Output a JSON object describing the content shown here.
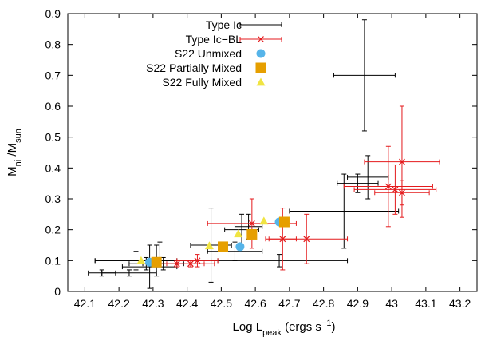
{
  "chart_data": {
    "type": "scatter",
    "xlabel": {
      "base": "Log L",
      "sub": "peak",
      "mid": " (ergs s",
      "sup": "−1",
      "end": ")"
    },
    "ylabel": {
      "base": "M",
      "sub1": "ni",
      "mid": " /M",
      "sub2": "sun"
    },
    "xlim": [
      42.05,
      43.25
    ],
    "ylim": [
      0,
      0.9
    ],
    "xticks": [
      "42.1",
      "42.2",
      "42.3",
      "42.4",
      "42.5",
      "42.6",
      "42.7",
      "42.8",
      "42.9",
      "43",
      "43.1",
      "43.2"
    ],
    "yticks": [
      "0",
      "0.1",
      "0.2",
      "0.3",
      "0.4",
      "0.5",
      "0.6",
      "0.7",
      "0.8",
      "0.9"
    ],
    "legend_position": "top-left",
    "series": [
      {
        "name": "Type Ic",
        "marker": "errorbar",
        "color": "#000000",
        "points": [
          {
            "x": 42.92,
            "y": 0.7,
            "xerr": 0.09,
            "yerr": 0.18
          },
          {
            "x": 42.86,
            "y": 0.26,
            "xerr": 0.16,
            "yerr": 0.12
          },
          {
            "x": 42.9,
            "y": 0.35,
            "xerr": 0.06,
            "yerr": 0.03
          },
          {
            "x": 42.93,
            "y": 0.37,
            "xerr": 0.06,
            "yerr": 0.07
          },
          {
            "x": 42.67,
            "y": 0.1,
            "xerr": 0.2,
            "yerr": 0.02
          },
          {
            "x": 42.56,
            "y": 0.2,
            "xerr": 0.05,
            "yerr": 0.05
          },
          {
            "x": 42.58,
            "y": 0.21,
            "xerr": 0.04,
            "yerr": 0.04
          },
          {
            "x": 42.54,
            "y": 0.13,
            "xerr": 0.08,
            "yerr": 0.03
          },
          {
            "x": 42.47,
            "y": 0.15,
            "xerr": 0.06,
            "yerr": 0.12
          },
          {
            "x": 42.31,
            "y": 0.1,
            "xerr": 0.18,
            "yerr": 0.05
          },
          {
            "x": 42.25,
            "y": 0.1,
            "xerr": 0.12,
            "yerr": 0.03
          },
          {
            "x": 42.29,
            "y": 0.08,
            "xerr": 0.08,
            "yerr": 0.07
          },
          {
            "x": 42.28,
            "y": 0.09,
            "xerr": 0.05,
            "yerr": 0.02
          },
          {
            "x": 42.33,
            "y": 0.09,
            "xerr": 0.06,
            "yerr": 0.02
          },
          {
            "x": 42.23,
            "y": 0.06,
            "xerr": 0.08,
            "yerr": 0.01
          },
          {
            "x": 42.15,
            "y": 0.06,
            "xerr": 0.04,
            "yerr": 0.01
          },
          {
            "x": 42.32,
            "y": 0.13,
            "xerr": 0.0,
            "yerr": 0.03
          }
        ]
      },
      {
        "name": "Type Ic−BL",
        "marker": "x",
        "color": "#e41a1c",
        "points": [
          {
            "x": 43.03,
            "y": 0.42,
            "xerr": 0.11,
            "yerr": 0.18
          },
          {
            "x": 42.99,
            "y": 0.34,
            "xerr": 0.13,
            "yerr": 0.13
          },
          {
            "x": 43.01,
            "y": 0.33,
            "xerr": 0.12,
            "yerr": 0.08
          },
          {
            "x": 43.03,
            "y": 0.32,
            "xerr": 0.08,
            "yerr": 0.04
          },
          {
            "x": 42.59,
            "y": 0.22,
            "xerr": 0.13,
            "yerr": 0.08
          },
          {
            "x": 42.68,
            "y": 0.17,
            "xerr": 0.04,
            "yerr": 0.1
          },
          {
            "x": 42.75,
            "y": 0.17,
            "xerr": 0.12,
            "yerr": 0.08
          },
          {
            "x": 42.43,
            "y": 0.1,
            "xerr": 0.06,
            "yerr": 0.02
          },
          {
            "x": 42.41,
            "y": 0.09,
            "xerr": 0.07,
            "yerr": 0.01
          },
          {
            "x": 42.37,
            "y": 0.09,
            "xerr": 0.08,
            "yerr": 0.01
          }
        ]
      },
      {
        "name": "S22 Unmixed",
        "marker": "circle",
        "color": "#56b4e9",
        "points": [
          {
            "x": 42.29,
            "y": 0.095
          },
          {
            "x": 42.555,
            "y": 0.145
          },
          {
            "x": 42.67,
            "y": 0.225
          }
        ]
      },
      {
        "name": "S22 Partially Mixed",
        "marker": "square",
        "color": "#e69f00",
        "points": [
          {
            "x": 42.31,
            "y": 0.095
          },
          {
            "x": 42.505,
            "y": 0.145
          },
          {
            "x": 42.59,
            "y": 0.185
          },
          {
            "x": 42.685,
            "y": 0.225
          }
        ]
      },
      {
        "name": "S22 Fully Mixed",
        "marker": "triangle",
        "color": "#f0e442",
        "points": [
          {
            "x": 42.265,
            "y": 0.1
          },
          {
            "x": 42.465,
            "y": 0.148
          },
          {
            "x": 42.55,
            "y": 0.187
          },
          {
            "x": 42.625,
            "y": 0.228
          }
        ]
      }
    ]
  }
}
